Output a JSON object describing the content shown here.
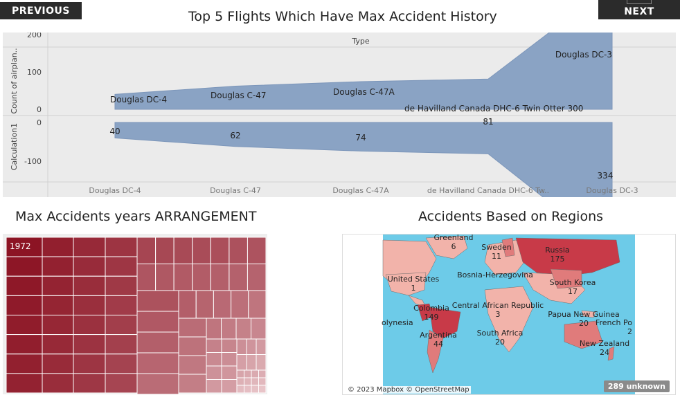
{
  "nav": {
    "previous_label": "PREVIOUS",
    "next_label": "NEXT"
  },
  "titles": {
    "main": "Top 5 Flights Which Have Max Accident History",
    "tree": "Max Accidents years ARRANGEMENT",
    "map": "Accidents Based on Regions"
  },
  "chart_data": {
    "type": "area",
    "header": "Type",
    "categories": [
      "Douglas DC-4",
      "Douglas C-47",
      "Douglas C-47A",
      "de Havilland Canada DHC-6 Twin Otter 300",
      "Douglas DC-3"
    ],
    "axis_category_labels": [
      "Douglas DC-4",
      "Douglas C-47",
      "Douglas C-47A",
      "de Havilland Canada DHC-6 Tw..",
      "Douglas DC-3"
    ],
    "values": [
      40,
      62,
      74,
      81,
      334
    ],
    "top_axis": {
      "label": "Count of airplan..",
      "ticks": [
        "300",
        "200",
        "100",
        "0"
      ],
      "range": [
        0,
        334
      ]
    },
    "bottom_axis": {
      "label": "Calculation1",
      "ticks": [
        "0",
        "-100",
        "-200",
        "-300"
      ],
      "range": [
        -334,
        0
      ]
    },
    "color": "#8aa3c4"
  },
  "treemap": {
    "label": "1972",
    "colors": {
      "dark": "#8c1424",
      "light": "#e8c4c8"
    }
  },
  "map": {
    "labels": [
      {
        "name": "Greenland",
        "value": "6"
      },
      {
        "name": "Sweden",
        "value": "11"
      },
      {
        "name": "Russia",
        "value": "175"
      },
      {
        "name": "United States",
        "value": "1"
      },
      {
        "name": "Bosnia-Herzegovina",
        "value": ""
      },
      {
        "name": "South Korea",
        "value": "17"
      },
      {
        "name": "Colombia",
        "value": "149"
      },
      {
        "name": "Central African Republic",
        "value": "3"
      },
      {
        "name": "Papua New Guinea",
        "value": "20"
      },
      {
        "name": "olynesia",
        "value": ""
      },
      {
        "name": "French Po",
        "value": "2"
      },
      {
        "name": "Argentina",
        "value": "44"
      },
      {
        "name": "South Africa",
        "value": "20"
      },
      {
        "name": "New Zealand",
        "value": "24"
      }
    ],
    "attribution": "© 2023 Mapbox © OpenStreetMap",
    "unknown": "289 unknown",
    "colors": {
      "ocean": "#6dcbe8",
      "high": "#c83a48",
      "mid": "#e07b7b",
      "low": "#f2b3aa"
    }
  }
}
